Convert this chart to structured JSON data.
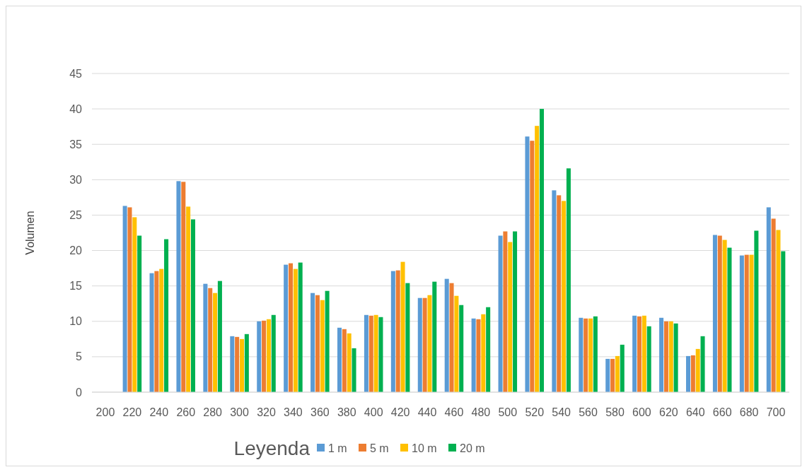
{
  "chart_data": {
    "type": "bar",
    "ylabel": "Volumen",
    "legend_title": "Leyenda",
    "legend": "bottom",
    "grid": "y",
    "categories": [
      "200",
      "220",
      "240",
      "260",
      "280",
      "300",
      "320",
      "340",
      "360",
      "380",
      "400",
      "420",
      "440",
      "460",
      "480",
      "500",
      "520",
      "540",
      "560",
      "580",
      "600",
      "620",
      "640",
      "660",
      "680",
      "700"
    ],
    "ylim": [
      0,
      45
    ],
    "yticks": [
      0,
      5,
      10,
      15,
      20,
      25,
      30,
      35,
      40,
      45
    ],
    "series": [
      {
        "name": "1 m",
        "color": "#5b9bd5",
        "values": [
          null,
          26.3,
          16.8,
          29.8,
          15.3,
          7.9,
          10.0,
          18.0,
          14.0,
          9.1,
          10.9,
          17.1,
          13.3,
          16.0,
          10.4,
          22.1,
          36.1,
          28.5,
          10.5,
          4.7,
          10.8,
          10.5,
          5.1,
          22.2,
          19.3,
          26.1
        ]
      },
      {
        "name": "5 m",
        "color": "#ed7d31",
        "values": [
          null,
          26.1,
          17.1,
          29.7,
          14.7,
          7.8,
          10.1,
          18.2,
          13.7,
          8.9,
          10.8,
          17.2,
          13.3,
          15.4,
          10.3,
          22.7,
          35.5,
          27.8,
          10.4,
          4.7,
          10.7,
          10.0,
          5.2,
          22.1,
          19.4,
          24.5
        ]
      },
      {
        "name": "10 m",
        "color": "#ffc000",
        "values": [
          null,
          24.7,
          17.4,
          26.2,
          14.0,
          7.5,
          10.3,
          17.4,
          13.0,
          8.3,
          10.9,
          18.4,
          13.7,
          13.6,
          11.0,
          21.2,
          37.6,
          27.0,
          10.4,
          5.1,
          10.8,
          10.0,
          6.1,
          21.5,
          19.4,
          22.9
        ]
      },
      {
        "name": "20 m",
        "color": "#00b050",
        "values": [
          null,
          22.1,
          21.6,
          24.4,
          15.7,
          8.2,
          10.9,
          18.3,
          14.3,
          6.2,
          10.6,
          15.4,
          15.6,
          12.3,
          12.0,
          22.7,
          40.0,
          31.6,
          10.7,
          6.7,
          9.3,
          9.7,
          7.9,
          20.4,
          22.8,
          19.9
        ]
      }
    ]
  }
}
